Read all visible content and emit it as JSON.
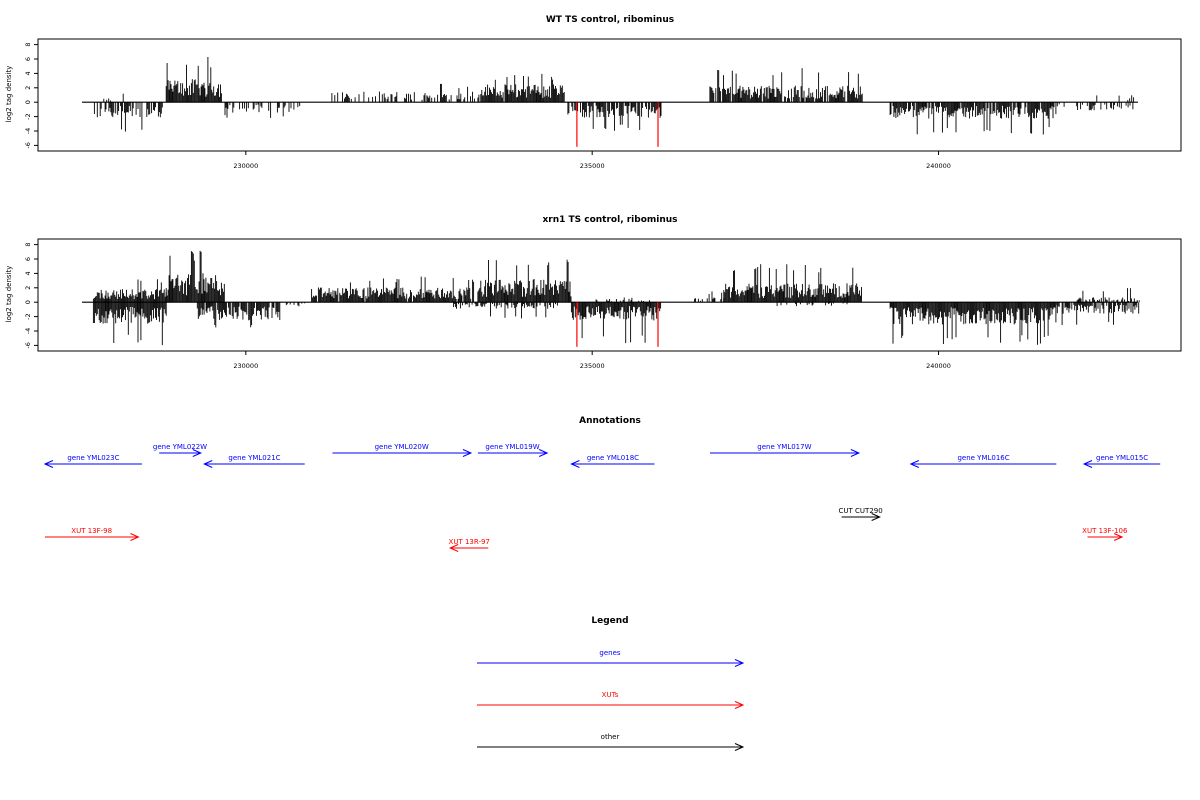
{
  "chart_data": [
    {
      "type": "bar",
      "title": "WT TS control, ribominus",
      "xlabel": "",
      "ylabel": "log2 tag density",
      "xlim": [
        227000,
        243500
      ],
      "ylim": [
        -6.5,
        8.5
      ],
      "yticks": [
        8,
        6,
        4,
        2,
        0,
        -2,
        -4,
        -6
      ],
      "xticks": [
        230000,
        235000,
        240000
      ],
      "xtick_labels": [
        "230000",
        "235000",
        "240000"
      ],
      "colors": {
        "default": "#000000",
        "highlight": "#ff0000"
      },
      "highlight_bars": [
        {
          "x": 234780,
          "y": -6.2
        },
        {
          "x": 235950,
          "y": -6.2
        }
      ],
      "segments": [
        {
          "start": 227800,
          "end": 228800,
          "sign": -1,
          "amp": 2.0,
          "peak": 4.6,
          "density": 0.65
        },
        {
          "start": 227950,
          "end": 228400,
          "sign": 1,
          "amp": 0.5,
          "peak": 1.5,
          "density": 0.25
        },
        {
          "start": 228850,
          "end": 229650,
          "sign": 1,
          "amp": 2.8,
          "peak": 6.4,
          "density": 1.0
        },
        {
          "start": 229700,
          "end": 230800,
          "sign": -1,
          "amp": 1.3,
          "peak": 2.2,
          "density": 0.45
        },
        {
          "start": 231200,
          "end": 233300,
          "sign": 1,
          "amp": 1.3,
          "peak": 2.6,
          "density": 0.45
        },
        {
          "start": 233350,
          "end": 234600,
          "sign": 1,
          "amp": 2.2,
          "peak": 4.0,
          "density": 0.95
        },
        {
          "start": 234650,
          "end": 236000,
          "sign": -1,
          "amp": 1.9,
          "peak": 4.1,
          "density": 0.8
        },
        {
          "start": 236700,
          "end": 238900,
          "sign": 1,
          "amp": 2.0,
          "peak": 4.8,
          "density": 0.85
        },
        {
          "start": 239300,
          "end": 241700,
          "sign": -1,
          "amp": 2.0,
          "peak": 4.6,
          "density": 0.9
        },
        {
          "start": 241700,
          "end": 242900,
          "sign": -1,
          "amp": 1.0,
          "peak": 2.6,
          "density": 0.35
        },
        {
          "start": 242200,
          "end": 242900,
          "sign": 1,
          "amp": 0.9,
          "peak": 3.4,
          "density": 0.2
        }
      ]
    },
    {
      "type": "bar",
      "title": "xrn1 TS control, ribominus",
      "xlabel": "",
      "ylabel": "log2 tag density",
      "xlim": [
        227000,
        243500
      ],
      "ylim": [
        -6.5,
        8.5
      ],
      "yticks": [
        8,
        6,
        4,
        2,
        0,
        -2,
        -4,
        -6
      ],
      "xticks": [
        230000,
        235000,
        240000
      ],
      "xtick_labels": [
        "230000",
        "235000",
        "240000"
      ],
      "colors": {
        "default": "#000000",
        "highlight": "#ff0000"
      },
      "highlight_bars": [
        {
          "x": 234780,
          "y": -6.2
        },
        {
          "x": 235950,
          "y": -6.2
        }
      ],
      "segments": [
        {
          "start": 227800,
          "end": 228850,
          "sign": 1,
          "amp": 1.6,
          "peak": 3.4,
          "density": 1.0
        },
        {
          "start": 227800,
          "end": 228850,
          "sign": -1,
          "amp": 2.6,
          "peak": 6.0,
          "density": 1.0
        },
        {
          "start": 228850,
          "end": 229700,
          "sign": 1,
          "amp": 3.5,
          "peak": 7.4,
          "density": 1.0
        },
        {
          "start": 229300,
          "end": 230500,
          "sign": -1,
          "amp": 2.2,
          "peak": 3.8,
          "density": 0.9
        },
        {
          "start": 230500,
          "end": 230900,
          "sign": -1,
          "amp": 0.5,
          "peak": 1.0,
          "density": 0.4
        },
        {
          "start": 230950,
          "end": 233300,
          "sign": 1,
          "amp": 1.8,
          "peak": 3.6,
          "density": 0.95
        },
        {
          "start": 233350,
          "end": 234700,
          "sign": 1,
          "amp": 2.8,
          "peak": 6.4,
          "density": 1.0
        },
        {
          "start": 233000,
          "end": 234500,
          "sign": -1,
          "amp": 0.8,
          "peak": 2.5,
          "density": 0.5
        },
        {
          "start": 234700,
          "end": 236000,
          "sign": -1,
          "amp": 2.2,
          "peak": 5.9,
          "density": 1.0
        },
        {
          "start": 235000,
          "end": 235900,
          "sign": 1,
          "amp": 0.4,
          "peak": 0.8,
          "density": 0.3
        },
        {
          "start": 236450,
          "end": 236900,
          "sign": 1,
          "amp": 0.6,
          "peak": 1.5,
          "density": 0.5
        },
        {
          "start": 236900,
          "end": 238900,
          "sign": 1,
          "amp": 2.3,
          "peak": 5.3,
          "density": 1.0
        },
        {
          "start": 237600,
          "end": 238700,
          "sign": -1,
          "amp": 0.5,
          "peak": 2.2,
          "density": 0.25
        },
        {
          "start": 239300,
          "end": 241700,
          "sign": -1,
          "amp": 2.7,
          "peak": 6.0,
          "density": 1.0
        },
        {
          "start": 241700,
          "end": 242900,
          "sign": -1,
          "amp": 1.4,
          "peak": 3.2,
          "density": 0.8
        },
        {
          "start": 242000,
          "end": 242900,
          "sign": 1,
          "amp": 0.6,
          "peak": 2.0,
          "density": 0.5
        }
      ]
    }
  ],
  "annotations": {
    "title": "Annotations",
    "xlim": [
      227000,
      243500
    ],
    "colors": {
      "gene": "#0000ff",
      "xut": "#ff0000",
      "other": "#000000"
    },
    "features": [
      {
        "label": "gene YML023C",
        "type": "gene",
        "start": 227100,
        "end": 228500,
        "strand": "-",
        "row": 2
      },
      {
        "label": "gene YML022W",
        "type": "gene",
        "start": 228750,
        "end": 229350,
        "strand": "+",
        "row": 1
      },
      {
        "label": "gene YML021C",
        "type": "gene",
        "start": 229400,
        "end": 230850,
        "strand": "-",
        "row": 2
      },
      {
        "label": "gene YML020W",
        "type": "gene",
        "start": 231250,
        "end": 233250,
        "strand": "+",
        "row": 1
      },
      {
        "label": "gene YML019W",
        "type": "gene",
        "start": 233350,
        "end": 234350,
        "strand": "+",
        "row": 1
      },
      {
        "label": "gene YML018C",
        "type": "gene",
        "start": 234700,
        "end": 235900,
        "strand": "-",
        "row": 2
      },
      {
        "label": "gene YML017W",
        "type": "gene",
        "start": 236700,
        "end": 238850,
        "strand": "+",
        "row": 1
      },
      {
        "label": "gene YML016C",
        "type": "gene",
        "start": 239600,
        "end": 241700,
        "strand": "-",
        "row": 2
      },
      {
        "label": "gene YML015C",
        "type": "gene",
        "start": 242100,
        "end": 243200,
        "strand": "-",
        "row": 2
      },
      {
        "label": "CUT CUT290",
        "type": "other",
        "start": 238600,
        "end": 239150,
        "strand": "+",
        "row": 3
      },
      {
        "label": "XUT 13F-98",
        "type": "xut",
        "start": 227100,
        "end": 228450,
        "strand": "+",
        "row": 4
      },
      {
        "label": "XUT 13R-97",
        "type": "xut",
        "start": 232950,
        "end": 233500,
        "strand": "-",
        "row": 5
      },
      {
        "label": "XUT 13F-106",
        "type": "xut",
        "start": 242150,
        "end": 242650,
        "strand": "+",
        "row": 4
      }
    ]
  },
  "legend": {
    "title": "Legend",
    "entries": [
      {
        "label": "genes",
        "color": "#0000ff"
      },
      {
        "label": "XUTs",
        "color": "#ff0000"
      },
      {
        "label": "other",
        "color": "#000000"
      }
    ]
  }
}
